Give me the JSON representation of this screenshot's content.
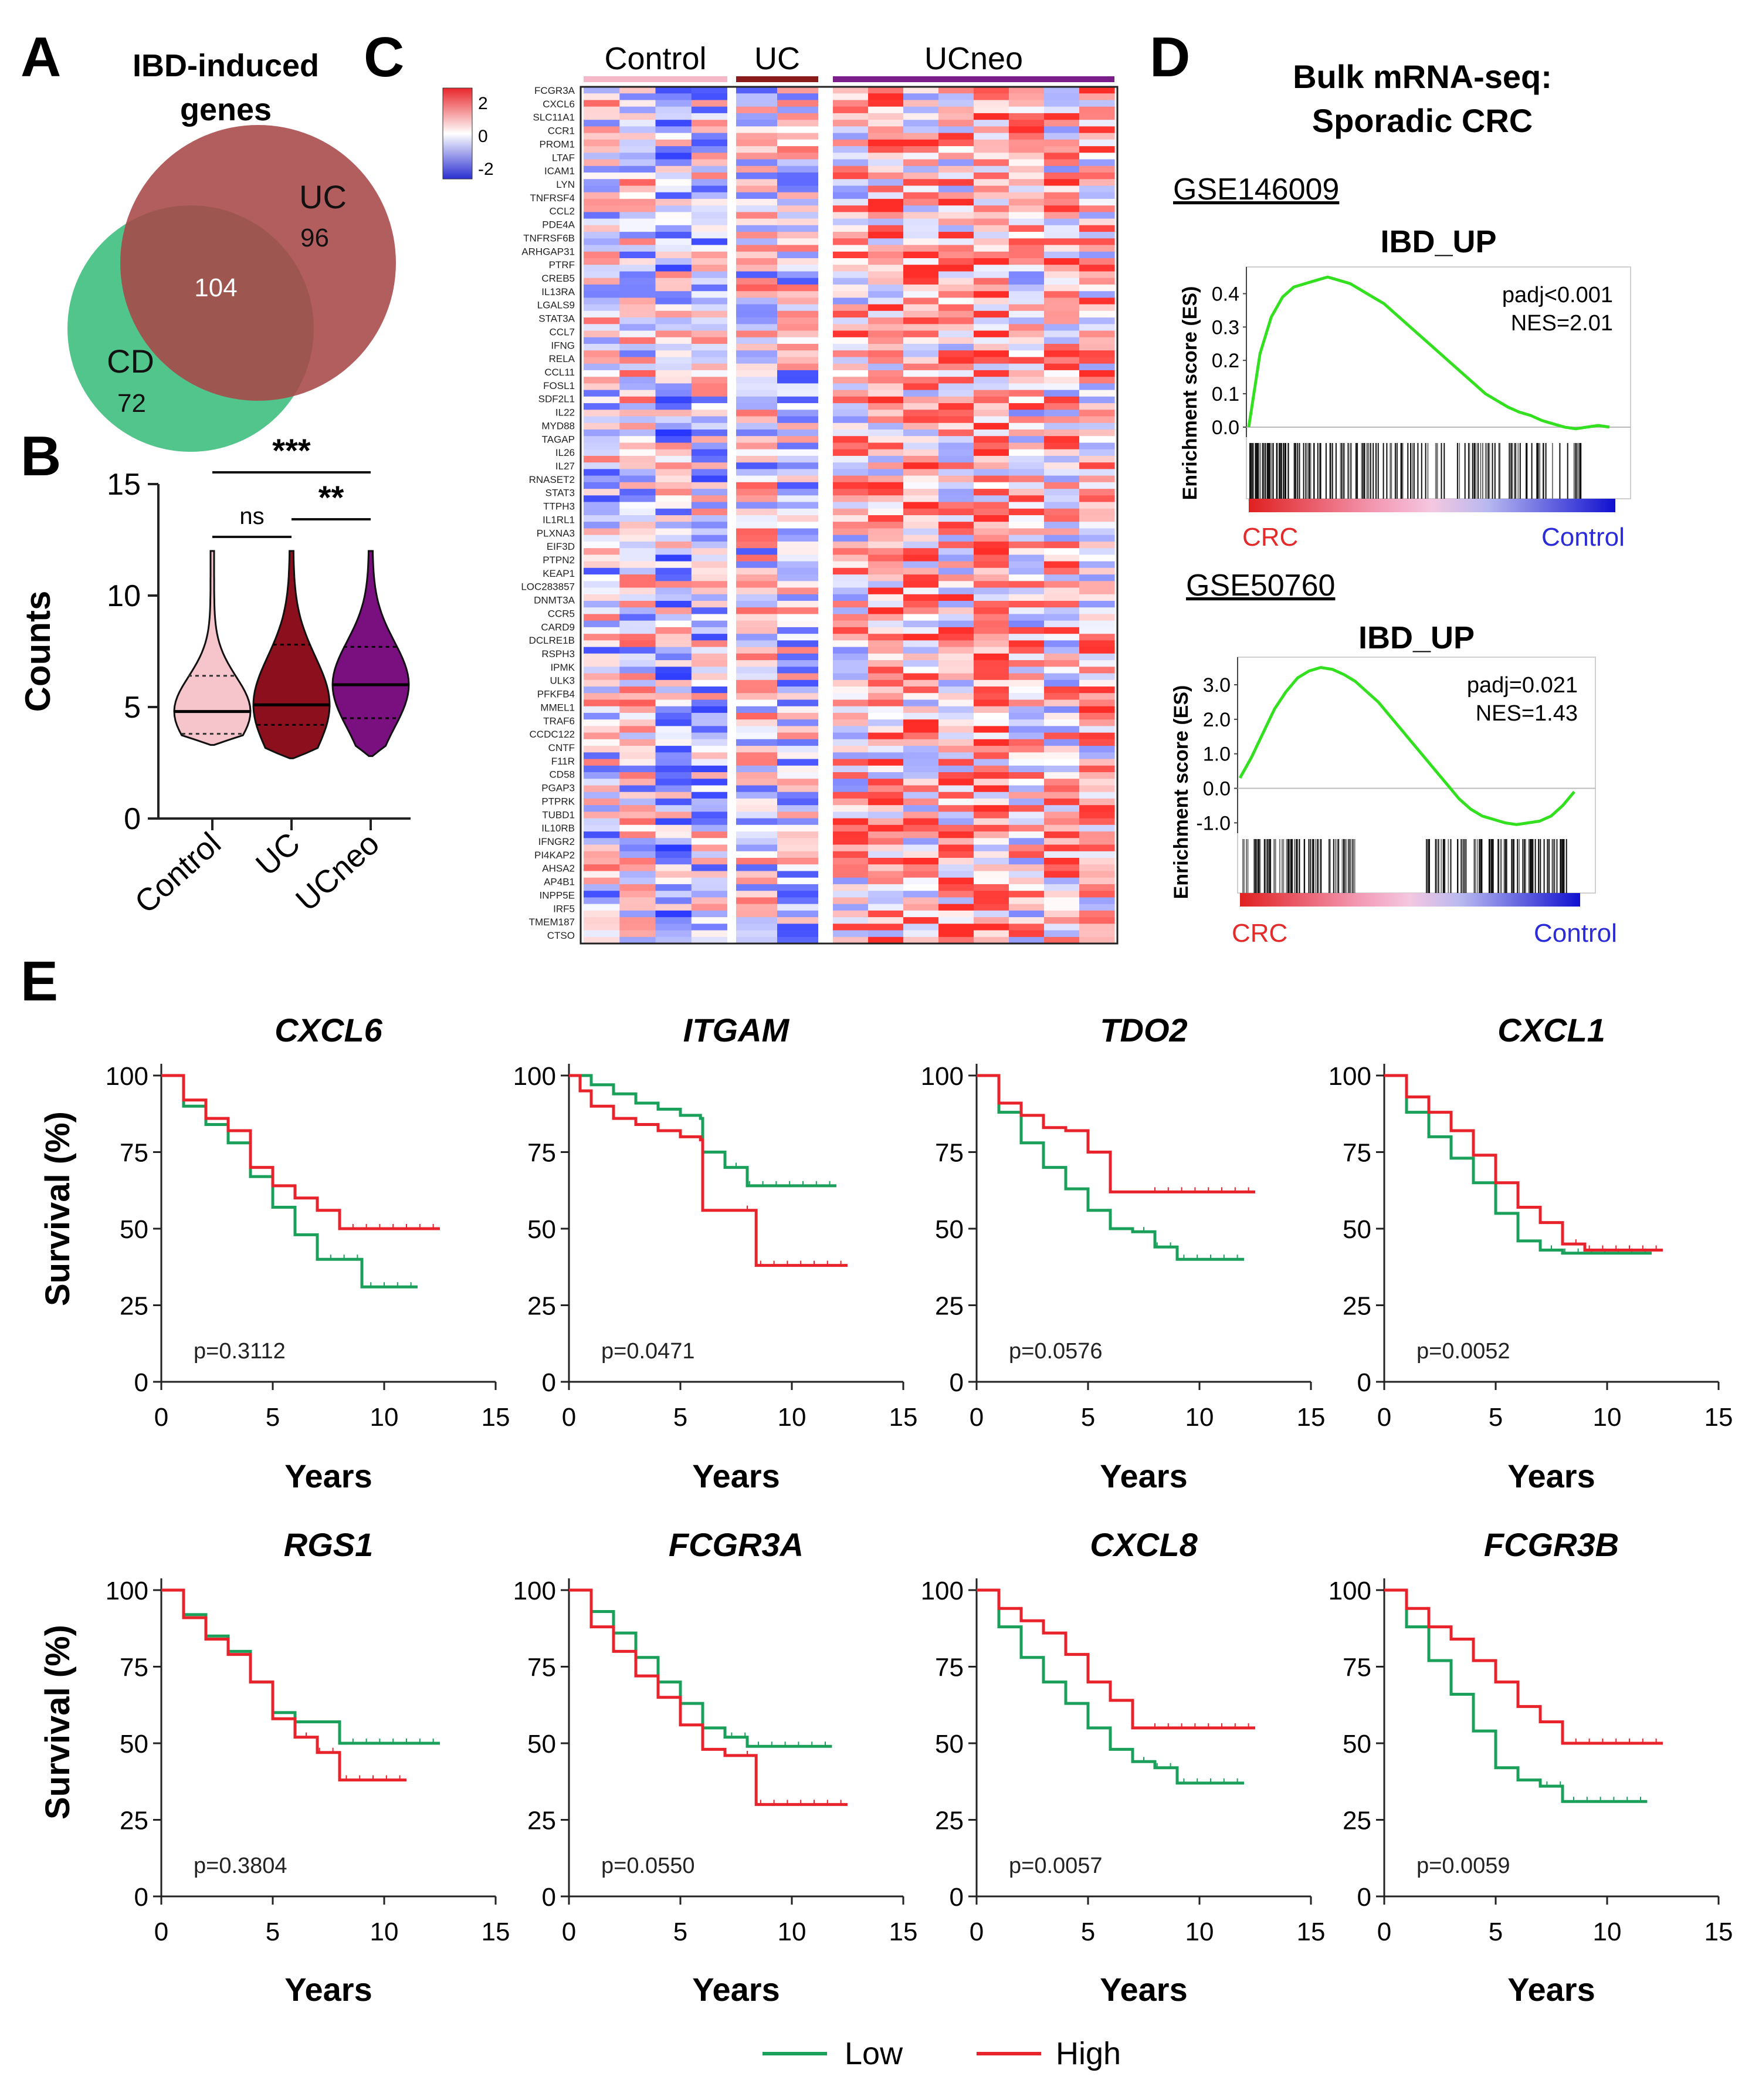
{
  "panels": {
    "A": {
      "letter": "A",
      "title_line1": "IBD-induced",
      "title_line2": "genes",
      "sets": [
        {
          "name": "UC",
          "count": "96",
          "color": "#a84848"
        },
        {
          "name": "CD",
          "count": "72",
          "color": "#3fbf7f"
        }
      ],
      "overlap": "104"
    },
    "B": {
      "letter": "B",
      "ylabel": "Counts",
      "yticks": [
        "0",
        "5",
        "10",
        "15"
      ],
      "groups": [
        {
          "name": "Control",
          "median": 4.8,
          "q1": 3.8,
          "q3": 6.4,
          "min": 3.3,
          "max": 12,
          "color": "#f6c4cb"
        },
        {
          "name": "UC",
          "median": 5.1,
          "q1": 4.2,
          "q3": 7.8,
          "min": 2.7,
          "max": 12,
          "color": "#8b0f1c"
        },
        {
          "name": "UCneo",
          "median": 6.0,
          "q1": 4.5,
          "q3": 7.7,
          "min": 2.8,
          "max": 12,
          "color": "#7a0f7f"
        }
      ],
      "significance": [
        {
          "label": "***",
          "from": "Control",
          "to": "UCneo"
        },
        {
          "label": "ns",
          "from": "Control",
          "to": "UC"
        },
        {
          "label": "**",
          "from": "UC",
          "to": "UCneo"
        }
      ]
    },
    "C": {
      "letter": "C",
      "groups": [
        {
          "name": "Control",
          "columns": 4,
          "bar_color": "#f5b8c8"
        },
        {
          "name": "UC",
          "columns": 2,
          "bar_color": "#8b1a1a"
        },
        {
          "name": "UCneo",
          "columns": 8,
          "bar_color": "#7a1f8a"
        }
      ],
      "colorbar_ticks": [
        "2",
        "0",
        "-2"
      ],
      "genes": [
        "FCGR3A",
        "CXCL6",
        "SLC11A1",
        "CCR1",
        "PROM1",
        "LTAF",
        "ICAM1",
        "LYN",
        "TNFRSF4",
        "CCL2",
        "PDE4A",
        "TNFRSF6B",
        "ARHGAP31",
        "PTRF",
        "CREB5",
        "IL13RA",
        "LGALS9",
        "STAT3A",
        "CCL7",
        "IFNG",
        "RELA",
        "CCL11",
        "FOSL1",
        "SDF2L1",
        "IL22",
        "MYD88",
        "TAGAP",
        "IL26",
        "IL27",
        "RNASET2",
        "STAT3",
        "TTPH3",
        "IL1RL1",
        "PLXNA3",
        "EIF3D",
        "PTPN2",
        "KEAP1",
        "LOC283857",
        "DNMT3A",
        "CCR5",
        "CARD9",
        "DCLRE1B",
        "RSPH3",
        "IPMK",
        "ULK3",
        "PFKFB4",
        "MMEL1",
        "TRAF6",
        "CCDC122",
        "CNTF",
        "F11R",
        "CD58",
        "PGAP3",
        "PTPRK",
        "TUBD1",
        "IL10RB",
        "IFNGR2",
        "PI4KAP2",
        "AHSA2",
        "AP4B1",
        "INPP5E",
        "IRF5",
        "TMEM187",
        "CTSO"
      ]
    },
    "D": {
      "letter": "D",
      "title_line1": "Bulk mRNA-seq:",
      "title_line2": "Sporadic CRC",
      "ylabel": "Enrichment score (ES)",
      "left_label": "CRC",
      "right_label": "Control",
      "plots": [
        {
          "dataset": "GSE146009",
          "geneset": "IBD_UP",
          "padj": "padj<0.001",
          "nes": "NES=2.01",
          "yticks": [
            "0.4",
            "0.3",
            "0.2",
            "0.1",
            "0.0"
          ],
          "ymin": -0.03,
          "ymax": 0.48,
          "es_curve": [
            0,
            0.22,
            0.33,
            0.39,
            0.42,
            0.43,
            0.44,
            0.45,
            0.44,
            0.43,
            0.41,
            0.39,
            0.37,
            0.34,
            0.31,
            0.28,
            0.25,
            0.22,
            0.19,
            0.16,
            0.13,
            0.1,
            0.08,
            0.06,
            0.045,
            0.035,
            0.02,
            0.01,
            0.0,
            -0.005,
            0.0,
            0.005,
            0.0
          ]
        },
        {
          "dataset": "GSE50760",
          "geneset": "IBD_UP",
          "padj": "padj=0.021",
          "nes": "NES=1.43",
          "yticks": [
            "3.0",
            "2.0",
            "1.0",
            "0.0",
            "-1.0"
          ],
          "ymin": -1.3,
          "ymax": 3.8,
          "es_curve": [
            0.3,
            0.9,
            1.6,
            2.3,
            2.8,
            3.2,
            3.4,
            3.5,
            3.45,
            3.3,
            3.1,
            2.8,
            2.5,
            2.1,
            1.7,
            1.3,
            0.9,
            0.5,
            0.1,
            -0.3,
            -0.6,
            -0.8,
            -0.9,
            -1.0,
            -1.05,
            -1.0,
            -0.95,
            -0.8,
            -0.5,
            -0.1
          ]
        }
      ]
    },
    "E": {
      "letter": "E",
      "xlabel": "Years",
      "ylabel": "Survival (%)",
      "xticks": [
        "0",
        "5",
        "10",
        "15"
      ],
      "yticks": [
        "0",
        "25",
        "50",
        "75",
        "100"
      ],
      "legend": [
        {
          "label": "Low",
          "color": "#1aa05a"
        },
        {
          "label": "High",
          "color": "#e8232b"
        }
      ]
    }
  },
  "chart_data": [
    {
      "type": "line",
      "title": "CXCL6",
      "xlabel": "Years",
      "ylabel": "Survival (%)",
      "xlim": [
        0,
        15
      ],
      "ylim": [
        0,
        100
      ],
      "pvalue": "p=0.3112",
      "series": [
        {
          "name": "Low",
          "color": "#1aa05a",
          "x": [
            0,
            1,
            2,
            3,
            4,
            5,
            6,
            7,
            8,
            9,
            10,
            11,
            11.5
          ],
          "y": [
            100,
            90,
            84,
            78,
            67,
            57,
            48,
            40,
            40,
            31,
            31,
            31,
            31
          ]
        },
        {
          "name": "High",
          "color": "#e8232b",
          "x": [
            0,
            1,
            2,
            3,
            4,
            5,
            6,
            7,
            8,
            9,
            10,
            11,
            12.5
          ],
          "y": [
            100,
            92,
            86,
            82,
            70,
            64,
            60,
            56,
            50,
            50,
            50,
            50,
            50
          ]
        }
      ]
    },
    {
      "type": "line",
      "title": "ITGAM",
      "xlabel": "Years",
      "ylabel": "Survival (%)",
      "xlim": [
        0,
        15
      ],
      "ylim": [
        0,
        100
      ],
      "pvalue": "p=0.0471",
      "series": [
        {
          "name": "Low",
          "color": "#1aa05a",
          "x": [
            0,
            1,
            2,
            3,
            4,
            5,
            5.9,
            6,
            7,
            8,
            9,
            10,
            11,
            12
          ],
          "y": [
            100,
            97,
            94,
            91,
            89,
            87,
            86,
            75,
            70,
            64,
            64,
            64,
            64,
            64
          ]
        },
        {
          "name": "High",
          "color": "#e8232b",
          "x": [
            0,
            0.5,
            1,
            2,
            3,
            4,
            5,
            5.9,
            6,
            7,
            8,
            8.4,
            9,
            10,
            11,
            12.5
          ],
          "y": [
            100,
            95,
            90,
            86,
            84,
            82,
            80,
            79,
            56,
            56,
            56,
            38,
            38,
            38,
            38,
            38
          ]
        }
      ]
    },
    {
      "type": "line",
      "title": "TDO2",
      "xlabel": "Years",
      "ylabel": "Survival (%)",
      "xlim": [
        0,
        15
      ],
      "ylim": [
        0,
        100
      ],
      "pvalue": "p=0.0576",
      "series": [
        {
          "name": "Low",
          "color": "#1aa05a",
          "x": [
            0,
            1,
            2,
            3,
            4,
            5,
            6,
            7,
            8,
            9,
            10,
            11,
            12
          ],
          "y": [
            100,
            88,
            78,
            70,
            63,
            56,
            50,
            49,
            44,
            40,
            40,
            40,
            40
          ]
        },
        {
          "name": "High",
          "color": "#e8232b",
          "x": [
            0,
            1,
            2,
            3,
            4,
            5,
            6,
            7,
            8,
            9,
            10,
            11,
            12.5
          ],
          "y": [
            100,
            91,
            87,
            83,
            82,
            75,
            62,
            62,
            62,
            62,
            62,
            62,
            62
          ]
        }
      ]
    },
    {
      "type": "line",
      "title": "CXCL1",
      "xlabel": "Years",
      "ylabel": "Survival (%)",
      "xlim": [
        0,
        15
      ],
      "ylim": [
        0,
        100
      ],
      "pvalue": "p=0.0052",
      "series": [
        {
          "name": "Low",
          "color": "#1aa05a",
          "x": [
            0,
            1,
            2,
            3,
            4,
            5,
            6,
            7,
            8,
            9,
            10,
            11,
            12
          ],
          "y": [
            100,
            88,
            80,
            73,
            65,
            55,
            46,
            43,
            42,
            42,
            42,
            42,
            42
          ]
        },
        {
          "name": "High",
          "color": "#e8232b",
          "x": [
            0,
            1,
            2,
            3,
            4,
            5,
            6,
            7,
            8,
            9,
            10,
            11,
            12.5
          ],
          "y": [
            100,
            93,
            88,
            82,
            74,
            65,
            57,
            52,
            45,
            43,
            43,
            43,
            43
          ]
        }
      ]
    },
    {
      "type": "line",
      "title": "RGS1",
      "xlabel": "Years",
      "ylabel": "Survival (%)",
      "xlim": [
        0,
        15
      ],
      "ylim": [
        0,
        100
      ],
      "pvalue": "p=0.3804",
      "series": [
        {
          "name": "Low",
          "color": "#1aa05a",
          "x": [
            0,
            1,
            2,
            3,
            4,
            5,
            6,
            7,
            8,
            9,
            10,
            11,
            12.5
          ],
          "y": [
            100,
            92,
            85,
            80,
            70,
            60,
            57,
            57,
            50,
            50,
            50,
            50,
            50
          ]
        },
        {
          "name": "High",
          "color": "#e8232b",
          "x": [
            0,
            1,
            2,
            3,
            4,
            5,
            6,
            7,
            8,
            9,
            10,
            11
          ],
          "y": [
            100,
            91,
            84,
            79,
            70,
            58,
            52,
            47,
            38,
            38,
            38,
            38
          ]
        }
      ]
    },
    {
      "type": "line",
      "title": "FCGR3A",
      "xlabel": "Years",
      "ylabel": "Survival (%)",
      "xlim": [
        0,
        15
      ],
      "ylim": [
        0,
        100
      ],
      "pvalue": "p=0.0550",
      "series": [
        {
          "name": "Low",
          "color": "#1aa05a",
          "x": [
            0,
            1,
            2,
            3,
            4,
            5,
            6,
            7,
            8,
            9,
            10,
            11,
            11.8
          ],
          "y": [
            100,
            93,
            86,
            78,
            70,
            63,
            55,
            52,
            49,
            49,
            49,
            49,
            49
          ]
        },
        {
          "name": "High",
          "color": "#e8232b",
          "x": [
            0,
            1,
            2,
            3,
            4,
            5,
            6,
            7,
            8,
            8.4,
            9,
            10,
            11,
            12.5
          ],
          "y": [
            100,
            88,
            80,
            72,
            65,
            56,
            48,
            46,
            46,
            30,
            30,
            30,
            30,
            30
          ]
        }
      ]
    },
    {
      "type": "line",
      "title": "CXCL8",
      "xlabel": "Years",
      "ylabel": "Survival (%)",
      "xlim": [
        0,
        15
      ],
      "ylim": [
        0,
        100
      ],
      "pvalue": "p=0.0057",
      "series": [
        {
          "name": "Low",
          "color": "#1aa05a",
          "x": [
            0,
            1,
            2,
            3,
            4,
            5,
            6,
            7,
            8,
            9,
            10,
            11,
            12
          ],
          "y": [
            100,
            88,
            78,
            70,
            63,
            55,
            48,
            44,
            42,
            37,
            37,
            37,
            37
          ]
        },
        {
          "name": "High",
          "color": "#e8232b",
          "x": [
            0,
            1,
            2,
            3,
            4,
            5,
            6,
            7,
            8,
            9,
            10,
            11,
            12.5
          ],
          "y": [
            100,
            94,
            90,
            86,
            79,
            70,
            64,
            55,
            55,
            55,
            55,
            55,
            55
          ]
        }
      ]
    },
    {
      "type": "line",
      "title": "FCGR3B",
      "xlabel": "Years",
      "ylabel": "Survival (%)",
      "xlim": [
        0,
        15
      ],
      "ylim": [
        0,
        100
      ],
      "pvalue": "p=0.0059",
      "series": [
        {
          "name": "Low",
          "color": "#1aa05a",
          "x": [
            0,
            1,
            2,
            3,
            4,
            5,
            6,
            7,
            8,
            9,
            10,
            11,
            11.8
          ],
          "y": [
            100,
            88,
            77,
            66,
            54,
            42,
            38,
            36,
            31,
            31,
            31,
            31,
            31
          ]
        },
        {
          "name": "High",
          "color": "#e8232b",
          "x": [
            0,
            1,
            2,
            3,
            4,
            5,
            6,
            7,
            8,
            9,
            10,
            11,
            12.5
          ],
          "y": [
            100,
            94,
            88,
            84,
            77,
            70,
            62,
            57,
            50,
            50,
            50,
            50,
            50
          ]
        }
      ]
    }
  ]
}
